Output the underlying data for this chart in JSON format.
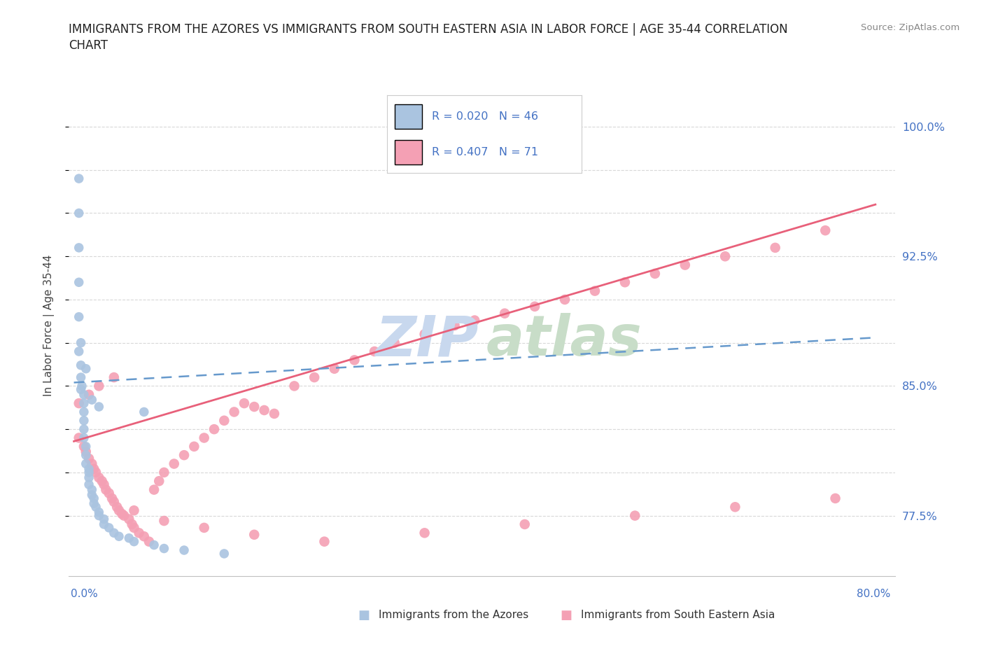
{
  "title_line1": "IMMIGRANTS FROM THE AZORES VS IMMIGRANTS FROM SOUTH EASTERN ASIA IN LABOR FORCE | AGE 35-44 CORRELATION",
  "title_line2": "CHART",
  "source": "Source: ZipAtlas.com",
  "ylabel": "In Labor Force | Age 35-44",
  "y_tick_positions": [
    0.775,
    0.8,
    0.825,
    0.85,
    0.875,
    0.9,
    0.925,
    0.95,
    0.975,
    1.0
  ],
  "y_tick_labels": [
    "77.5%",
    "",
    "",
    "85.0%",
    "",
    "",
    "92.5%",
    "",
    "",
    "100.0%"
  ],
  "xlim": [
    -0.005,
    0.82
  ],
  "ylim": [
    0.74,
    1.03
  ],
  "azores_color": "#aac4e0",
  "sea_color": "#f4a0b4",
  "azores_line_color": "#6699cc",
  "sea_line_color": "#e8607a",
  "legend_text_color": "#4472c4",
  "R_azores": 0.02,
  "N_azores": 46,
  "R_sea": 0.407,
  "N_sea": 71,
  "watermark_zip_color": "#c8d8ee",
  "watermark_atlas_color": "#c8ddc8",
  "grid_color": "#d8d8d8",
  "spine_color": "#c0c0c0",
  "az_x": [
    0.005,
    0.005,
    0.005,
    0.005,
    0.005,
    0.007,
    0.007,
    0.007,
    0.007,
    0.01,
    0.01,
    0.01,
    0.01,
    0.01,
    0.01,
    0.012,
    0.012,
    0.012,
    0.015,
    0.015,
    0.015,
    0.015,
    0.018,
    0.018,
    0.02,
    0.02,
    0.022,
    0.025,
    0.025,
    0.03,
    0.03,
    0.035,
    0.04,
    0.045,
    0.055,
    0.06,
    0.08,
    0.09,
    0.11,
    0.15,
    0.005,
    0.008,
    0.012,
    0.018,
    0.025,
    0.07
  ],
  "az_y": [
    0.97,
    0.95,
    0.93,
    0.91,
    0.89,
    0.875,
    0.862,
    0.855,
    0.848,
    0.845,
    0.84,
    0.835,
    0.83,
    0.825,
    0.82,
    0.815,
    0.81,
    0.805,
    0.802,
    0.8,
    0.797,
    0.793,
    0.79,
    0.787,
    0.785,
    0.782,
    0.78,
    0.777,
    0.775,
    0.773,
    0.77,
    0.768,
    0.765,
    0.763,
    0.762,
    0.76,
    0.758,
    0.756,
    0.755,
    0.753,
    0.87,
    0.85,
    0.86,
    0.842,
    0.838,
    0.835
  ],
  "sea_x": [
    0.005,
    0.01,
    0.012,
    0.015,
    0.018,
    0.02,
    0.022,
    0.025,
    0.028,
    0.03,
    0.032,
    0.035,
    0.038,
    0.04,
    0.043,
    0.045,
    0.048,
    0.05,
    0.055,
    0.058,
    0.06,
    0.065,
    0.07,
    0.075,
    0.08,
    0.085,
    0.09,
    0.1,
    0.11,
    0.12,
    0.13,
    0.14,
    0.15,
    0.16,
    0.17,
    0.18,
    0.19,
    0.2,
    0.22,
    0.24,
    0.26,
    0.28,
    0.3,
    0.32,
    0.35,
    0.38,
    0.4,
    0.43,
    0.46,
    0.49,
    0.52,
    0.55,
    0.58,
    0.61,
    0.65,
    0.7,
    0.75,
    0.005,
    0.015,
    0.025,
    0.04,
    0.06,
    0.09,
    0.13,
    0.18,
    0.25,
    0.35,
    0.45,
    0.56,
    0.66,
    0.76
  ],
  "sea_y": [
    0.82,
    0.815,
    0.812,
    0.808,
    0.805,
    0.802,
    0.8,
    0.797,
    0.795,
    0.793,
    0.79,
    0.788,
    0.785,
    0.783,
    0.78,
    0.778,
    0.776,
    0.775,
    0.773,
    0.77,
    0.768,
    0.765,
    0.763,
    0.76,
    0.79,
    0.795,
    0.8,
    0.805,
    0.81,
    0.815,
    0.82,
    0.825,
    0.83,
    0.835,
    0.84,
    0.838,
    0.836,
    0.834,
    0.85,
    0.855,
    0.86,
    0.865,
    0.87,
    0.875,
    0.88,
    0.885,
    0.888,
    0.892,
    0.896,
    0.9,
    0.905,
    0.91,
    0.915,
    0.92,
    0.925,
    0.93,
    0.94,
    0.84,
    0.845,
    0.85,
    0.855,
    0.778,
    0.772,
    0.768,
    0.764,
    0.76,
    0.765,
    0.77,
    0.775,
    0.78,
    0.785
  ],
  "sea_trend_x0": 0.0,
  "sea_trend_x1": 0.8,
  "sea_trend_y0": 0.818,
  "sea_trend_y1": 0.955,
  "az_trend_x0": 0.0,
  "az_trend_x1": 0.8,
  "az_trend_y0": 0.852,
  "az_trend_y1": 0.878
}
